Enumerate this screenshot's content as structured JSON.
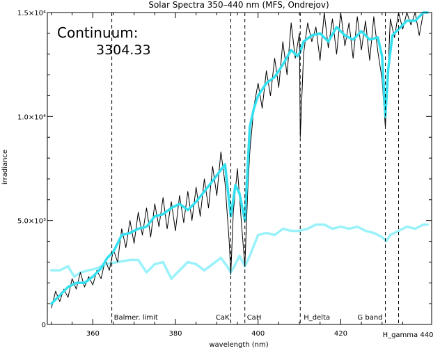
{
  "chart_data": {
    "type": "line",
    "title": "Solar Spectra 350–440 nm (MFS, Ondrejov)",
    "xlabel": "wavelength (nm)",
    "ylabel": "irradiance",
    "xlim": [
      349,
      442
    ],
    "ylim": [
      0,
      15000
    ],
    "x_ticks": [
      {
        "value": 360,
        "label": "360"
      },
      {
        "value": 380,
        "label": "380"
      },
      {
        "value": 400,
        "label": "400"
      },
      {
        "value": 420,
        "label": "420"
      }
    ],
    "y_ticks": [
      {
        "value": 0,
        "label": "0"
      },
      {
        "value": 5000,
        "label": "5.0×10³"
      },
      {
        "value": 10000,
        "label": "1.0×10⁴"
      },
      {
        "value": 15000,
        "label": "1.5×10⁴"
      }
    ],
    "annotations": {
      "continuum_label": "Continuum:",
      "continuum_value": "3304.33"
    },
    "markers": [
      {
        "x": 364.6,
        "label": "Balmer. limit"
      },
      {
        "x": 393.4,
        "label": "CaK"
      },
      {
        "x": 396.8,
        "label": "CaH"
      },
      {
        "x": 410.2,
        "label": "H_delta"
      },
      {
        "x": 430.8,
        "label": "G band"
      },
      {
        "x": 434.0,
        "label": "H_gamma 440"
      }
    ],
    "series": [
      {
        "color": "#000000",
        "x": [
          350.0,
          351.0,
          352.0,
          353.0,
          354.0,
          355.0,
          356.0,
          357.0,
          358.0,
          359.0,
          360.0,
          361.0,
          362.0,
          363.0,
          364.0,
          365.0,
          366.0,
          367.0,
          368.0,
          369.0,
          370.0,
          371.0,
          372.0,
          373.0,
          374.0,
          375.0,
          376.0,
          377.0,
          378.0,
          379.0,
          380.0,
          381.0,
          382.0,
          383.0,
          384.0,
          385.0,
          386.0,
          387.0,
          388.0,
          389.0,
          390.0,
          391.0,
          392.0,
          393.0,
          393.4,
          394.0,
          395.0,
          396.0,
          396.8,
          397.5,
          398.0,
          399.0,
          400.0,
          401.0,
          402.0,
          403.0,
          404.0,
          405.0,
          406.0,
          407.0,
          408.0,
          409.0,
          410.0,
          410.2,
          411.0,
          412.0,
          413.0,
          414.0,
          415.0,
          416.0,
          417.0,
          418.0,
          419.0,
          420.0,
          421.0,
          422.0,
          423.0,
          424.0,
          425.0,
          426.0,
          427.0,
          428.0,
          429.0,
          430.0,
          430.8,
          431.5,
          432.0,
          433.0,
          434.0,
          435.0,
          436.0,
          437.0,
          438.0,
          439.0,
          440.0,
          441.0
        ],
        "y": [
          800,
          1600,
          1100,
          1700,
          1300,
          2200,
          1700,
          2500,
          1800,
          2300,
          1900,
          2600,
          2200,
          3100,
          2600,
          3600,
          3000,
          4600,
          3700,
          5000,
          3900,
          5400,
          4300,
          5600,
          4200,
          5800,
          4700,
          6100,
          4600,
          5900,
          4500,
          6200,
          4900,
          6400,
          5000,
          6600,
          5200,
          7000,
          5600,
          7600,
          6200,
          8300,
          6800,
          4000,
          2400,
          5400,
          7500,
          4800,
          2800,
          6500,
          8300,
          10500,
          11600,
          10400,
          12200,
          11000,
          12800,
          11400,
          13600,
          12000,
          14500,
          12800,
          14000,
          9000,
          13000,
          14500,
          13600,
          14300,
          12700,
          15000,
          13300,
          14700,
          13000,
          15000,
          13400,
          14500,
          12800,
          14800,
          13200,
          14600,
          12700,
          14800,
          13100,
          11800,
          9500,
          12400,
          14700,
          13800,
          15000,
          14200,
          15000,
          14400,
          15000,
          13900,
          15000,
          15000
        ]
      },
      {
        "color": "#33e0f0",
        "x": [
          350.0,
          352.0,
          354.0,
          356.0,
          358.0,
          360.0,
          362.0,
          363.5,
          365.0,
          367.0,
          369.0,
          371.0,
          373.0,
          375.0,
          377.0,
          379.0,
          381.0,
          383.0,
          385.0,
          387.0,
          389.0,
          390.5,
          392.0,
          393.4,
          394.5,
          395.5,
          396.8,
          398.0,
          399.0,
          400.0,
          402.0,
          404.0,
          406.0,
          408.0,
          409.5,
          410.2,
          411.0,
          413.0,
          415.0,
          417.0,
          419.0,
          421.0,
          423.0,
          425.0,
          427.0,
          429.0,
          430.0,
          430.8,
          431.5,
          432.5,
          434.0,
          436.0,
          438.0,
          440.0,
          441.0
        ],
        "y": [
          1000,
          1400,
          1800,
          2000,
          2000,
          2300,
          2700,
          3200,
          3500,
          4300,
          4400,
          4600,
          4700,
          5200,
          5300,
          5600,
          5800,
          5500,
          5900,
          6400,
          6900,
          7300,
          7700,
          5200,
          6700,
          6300,
          5000,
          9500,
          10400,
          11000,
          11600,
          11900,
          12500,
          13200,
          12900,
          13100,
          13600,
          13900,
          14000,
          13600,
          14300,
          13900,
          13700,
          14100,
          13700,
          13800,
          12900,
          10000,
          12300,
          13900,
          14200,
          14600,
          14600,
          15000,
          15000
        ]
      },
      {
        "color": "#99f2fa",
        "x": [
          350.0,
          352.0,
          354.0,
          355.5,
          357.0,
          359.0,
          361.0,
          363.0,
          366.0,
          369.0,
          371.0,
          373.0,
          375.0,
          377.0,
          379.0,
          381.0,
          383.0,
          385.0,
          387.0,
          389.0,
          391.0,
          392.5,
          393.4,
          394.5,
          395.5,
          396.8,
          398.0,
          400.0,
          402.0,
          404.0,
          406.0,
          408.0,
          410.0,
          412.0,
          414.0,
          416.0,
          418.0,
          420.0,
          422.0,
          424.0,
          426.0,
          428.0,
          430.0,
          431.0,
          432.0,
          434.0,
          436.0,
          438.0,
          440.0,
          441.0
        ],
        "y": [
          2600,
          2600,
          2800,
          2300,
          2500,
          2600,
          2700,
          2900,
          3000,
          3100,
          3100,
          2500,
          2900,
          3000,
          2200,
          2600,
          3000,
          2900,
          2600,
          2900,
          3200,
          2800,
          2500,
          2900,
          3300,
          2800,
          3300,
          4300,
          4400,
          4300,
          4600,
          4500,
          4500,
          4600,
          4800,
          4800,
          4600,
          4700,
          4600,
          4700,
          4500,
          4400,
          4200,
          4000,
          4300,
          4500,
          4700,
          4600,
          4800,
          4800
        ]
      }
    ]
  }
}
